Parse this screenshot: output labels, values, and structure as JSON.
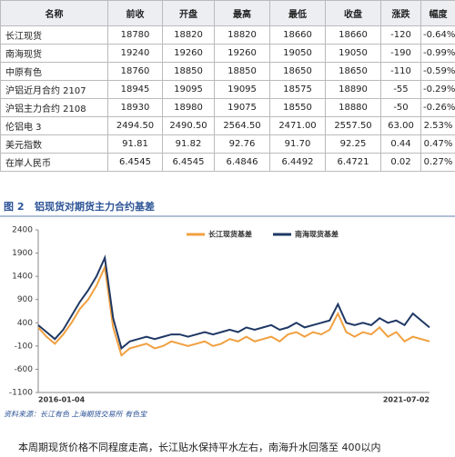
{
  "table": {
    "header": [
      "名称",
      "前收",
      "开盘",
      "最高",
      "最低",
      "收盘",
      "涨跌",
      "幅度"
    ],
    "rows": [
      [
        "长江现货",
        "18780",
        "18820",
        "18820",
        "18660",
        "18660",
        "-120",
        "-0.64%"
      ],
      [
        "南海现货",
        "19240",
        "19260",
        "19260",
        "19050",
        "19050",
        "-190",
        "-0.99%"
      ],
      [
        "中原有色",
        "18760",
        "18850",
        "18850",
        "18650",
        "18650",
        "-110",
        "-0.59%"
      ],
      [
        "沪铝近月合约 2107",
        "18945",
        "19095",
        "19095",
        "18575",
        "18890",
        "-55",
        "-0.29%"
      ],
      [
        "沪铝主力合约 2108",
        "18930",
        "18980",
        "19075",
        "18550",
        "18880",
        "-50",
        "-0.26%"
      ],
      [
        "伦铝电 3",
        "2494.50",
        "2490.50",
        "2564.50",
        "2471.00",
        "2557.50",
        "63.00",
        "2.53%"
      ],
      [
        "美元指数",
        "91.81",
        "91.82",
        "92.76",
        "91.70",
        "92.25",
        "0.44",
        "0.47%"
      ],
      [
        "在岸人民币",
        "6.4545",
        "6.4545",
        "6.4846",
        "6.4492",
        "6.4721",
        "0.02",
        "0.27%"
      ]
    ]
  },
  "figure": {
    "number": "图 2",
    "title": "铝现货对期货主力合约基差"
  },
  "chart_data": {
    "type": "line",
    "categories": [
      "2016-01-04",
      null,
      null,
      null,
      null,
      null,
      null,
      null,
      null,
      null,
      null,
      null,
      null,
      null,
      null,
      null,
      null,
      null,
      null,
      null,
      null,
      null,
      null,
      null,
      null,
      null,
      null,
      null,
      null,
      null,
      null,
      null,
      null,
      null,
      null,
      null,
      null,
      null,
      null,
      null,
      null,
      null,
      null,
      null,
      null,
      null,
      null,
      "2021-07-02"
    ],
    "series": [
      {
        "name": "长江现货基差",
        "color": "#f0a040",
        "values": [
          300,
          100,
          -50,
          150,
          400,
          700,
          900,
          1200,
          1600,
          300,
          -300,
          -150,
          -100,
          -50,
          -150,
          -100,
          0,
          -50,
          -100,
          -50,
          0,
          -100,
          -50,
          50,
          0,
          100,
          0,
          50,
          100,
          0,
          150,
          200,
          100,
          200,
          150,
          250,
          600,
          200,
          100,
          200,
          150,
          300,
          100,
          200,
          0,
          100,
          50,
          0
        ]
      },
      {
        "name": "南海现货基差",
        "color": "#1f3864",
        "values": [
          350,
          200,
          50,
          250,
          550,
          850,
          1100,
          1400,
          1800,
          500,
          -150,
          0,
          50,
          100,
          50,
          100,
          150,
          150,
          100,
          150,
          200,
          150,
          200,
          250,
          200,
          300,
          250,
          300,
          350,
          250,
          300,
          400,
          300,
          350,
          400,
          450,
          800,
          400,
          350,
          400,
          350,
          500,
          400,
          450,
          350,
          600,
          450,
          300
        ]
      }
    ],
    "ylim": [
      -1100,
      2400
    ],
    "yticks": [
      2400,
      1900,
      1400,
      900,
      400,
      -100,
      -600,
      -1100
    ]
  },
  "source": "资料来源：长江有色  上海期货交易所  有色宝",
  "body_text": "本周期现货价格不同程度走高，长江贴水保持平水左右，南海升水回落至 400以内"
}
